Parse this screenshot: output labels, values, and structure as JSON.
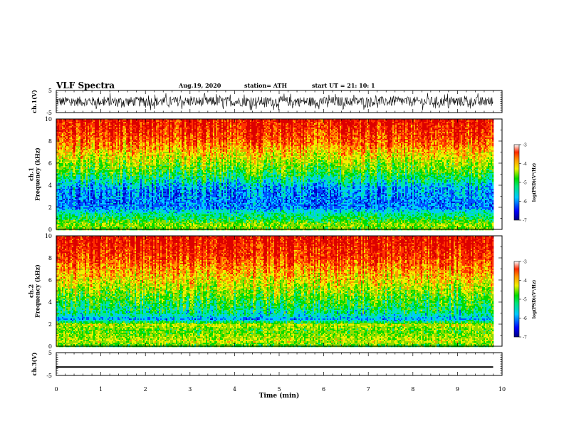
{
  "header": {
    "title": "VLF Spectra",
    "date": "Aug.19, 2020",
    "station": "station= ATH",
    "start": "start  UT =   21: 10: 1"
  },
  "colors": {
    "background": "#ffffff",
    "axes": "#000000",
    "spectrogram_colormap": [
      "#0000c8",
      "#0050ff",
      "#00c8ff",
      "#00e6a0",
      "#00dc00",
      "#8cdc00",
      "#f0f000",
      "#ff9600",
      "#ff3200",
      "#dc0000"
    ]
  },
  "chart_data": [
    {
      "type": "line",
      "name": "ch1-waveform",
      "ylabel": "ch.1(V)",
      "ylim": [
        -5,
        5
      ],
      "yticks": [
        "5",
        "-5"
      ],
      "xlim": [
        0,
        10
      ],
      "samples_description": "dense noise waveform spanning roughly -4 to +4 V over 0–9.8 min",
      "amplitude_range": [
        -4,
        4
      ],
      "x_end": 9.8
    },
    {
      "type": "heatmap",
      "name": "ch1-spectrogram",
      "ylabel": "ch.1\nFrequency (kHz)",
      "ylim": [
        0,
        10
      ],
      "yticks": [
        "0",
        "2",
        "4",
        "6",
        "8",
        "10"
      ],
      "xlim": [
        0,
        10
      ],
      "x_end": 9.8,
      "z_range": [
        -7,
        -3
      ],
      "colorbar_label": "log(PSD)(V²/Hz)",
      "colorbar_ticks": [
        "-3",
        "-4",
        "-5",
        "-6",
        "-7"
      ],
      "profile_khz": [
        0,
        0.5,
        1,
        1.5,
        2,
        2.5,
        3,
        3.5,
        4,
        4.5,
        5,
        5.5,
        6,
        6.5,
        7,
        7.5,
        8,
        8.5,
        9,
        9.5,
        10
      ],
      "profile_logpsd": [
        -5.0,
        -4.8,
        -5.3,
        -5.6,
        -6.2,
        -6.3,
        -6.2,
        -6.2,
        -6.0,
        -5.6,
        -5.3,
        -5.0,
        -4.8,
        -4.5,
        -4.3,
        -4.0,
        -3.8,
        -3.6,
        -3.5,
        -3.4,
        -3.3
      ]
    },
    {
      "type": "heatmap",
      "name": "ch2-spectrogram",
      "ylabel": "ch.2\nFrequency (kHz)",
      "ylim": [
        0,
        10
      ],
      "yticks": [
        "0",
        "2",
        "4",
        "6",
        "8",
        "10"
      ],
      "xlim": [
        0,
        10
      ],
      "x_end": 9.8,
      "z_range": [
        -7,
        -3
      ],
      "colorbar_label": "log(PSD)(V²/Hz)",
      "colorbar_ticks": [
        "-3",
        "-4",
        "-5",
        "-6",
        "-7"
      ],
      "profile_khz": [
        0,
        0.5,
        1,
        1.5,
        2,
        2.5,
        3,
        3.5,
        4,
        4.5,
        5,
        5.5,
        6,
        6.5,
        7,
        7.5,
        8,
        8.5,
        9,
        9.5,
        10
      ],
      "profile_logpsd": [
        -5.2,
        -4.6,
        -4.8,
        -5.0,
        -4.6,
        -6.1,
        -5.6,
        -5.4,
        -5.2,
        -5.0,
        -4.8,
        -4.6,
        -4.4,
        -4.2,
        -4.0,
        -3.8,
        -3.6,
        -3.5,
        -3.4,
        -3.3,
        -3.3
      ]
    },
    {
      "type": "line",
      "name": "ch3-waveform",
      "ylabel": "ch.3(V)",
      "ylim": [
        -5,
        5
      ],
      "yticks": [
        "5",
        "-5"
      ],
      "xlim": [
        0,
        10
      ],
      "level": -1.3,
      "thickness_v": 0.6,
      "x_end": 9.8
    }
  ],
  "xaxis": {
    "label": "Time (min)",
    "ticks": [
      "0",
      "1",
      "2",
      "3",
      "4",
      "5",
      "6",
      "7",
      "8",
      "9",
      "10"
    ]
  }
}
